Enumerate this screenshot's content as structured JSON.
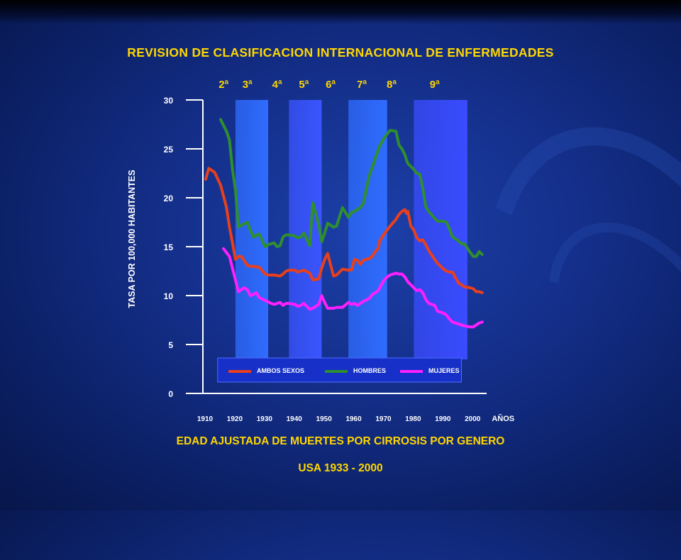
{
  "title": "REVISION DE CLASIFICACION INTERNACIONAL DE ENFERMEDADES",
  "subtitle_line1": "EDAD AJUSTADA DE MUERTES POR CIRROSIS POR GENERO",
  "subtitle_line2": "USA 1933 - 2000",
  "chart_data": {
    "type": "line",
    "xlabel": "AÑOS",
    "ylabel": "TASA POR 100,000 HABITANTES",
    "xlim": [
      1910,
      2004
    ],
    "ylim": [
      0,
      30
    ],
    "x_ticks": [
      1910,
      1920,
      1930,
      1940,
      1950,
      1960,
      1970,
      1980,
      1990,
      2000
    ],
    "y_ticks": [
      0,
      5,
      10,
      15,
      20,
      25,
      30
    ],
    "revisions": [
      {
        "label": "2ª",
        "x": 1916
      },
      {
        "label": "3ª",
        "x": 1924
      },
      {
        "label": "4ª",
        "x": 1934
      },
      {
        "label": "5ª",
        "x": 1943
      },
      {
        "label": "6ª",
        "x": 1952
      },
      {
        "label": "7ª",
        "x": 1962.5
      },
      {
        "label": "8ª",
        "x": 1972.5
      },
      {
        "label": "9ª",
        "x": 1987
      }
    ],
    "revision_bands": [
      {
        "from": 1920,
        "to": 1931,
        "color": "#2f6cff"
      },
      {
        "from": 1938,
        "to": 1949,
        "color": "#3a55ff"
      },
      {
        "from": 1958,
        "to": 1971,
        "color": "#2f6cff"
      },
      {
        "from": 1980,
        "to": 1998,
        "color": "#3a4cff"
      }
    ],
    "legend": "bottom",
    "series": [
      {
        "name": "AMBOS SEXOS",
        "color": "#e8401c",
        "x": [
          1910,
          1911,
          1913,
          1915,
          1917,
          1918,
          1919,
          1920,
          1921,
          1922,
          1924,
          1925,
          1926,
          1928,
          1930,
          1931,
          1933,
          1935,
          1936,
          1937,
          1938,
          1940,
          1941,
          1942,
          1943,
          1945,
          1946,
          1948,
          1949,
          1950,
          1951,
          1953,
          1954,
          1956,
          1958,
          1959,
          1960,
          1961,
          1962,
          1963,
          1965,
          1966,
          1967,
          1968,
          1968.5,
          1970,
          1972,
          1974,
          1975,
          1976,
          1977,
          1977.5,
          1978,
          1979,
          1980,
          1981,
          1982,
          1983,
          1984,
          1985,
          1987,
          1988,
          1990,
          1991,
          1992,
          1993,
          1995,
          1996,
          1997,
          1999,
          2000,
          2001,
          2002,
          2003
        ],
        "y": [
          21.9,
          23.0,
          22.6,
          21.3,
          19.0,
          17.0,
          15.4,
          13.7,
          14.0,
          14.0,
          13.1,
          13.0,
          13.0,
          12.9,
          12.2,
          12.1,
          12.1,
          12.0,
          12.2,
          12.5,
          12.6,
          12.6,
          12.4,
          12.5,
          12.6,
          12.3,
          11.6,
          11.7,
          12.8,
          13.7,
          14.3,
          12.0,
          12.1,
          12.7,
          12.6,
          12.6,
          13.7,
          13.6,
          13.2,
          13.6,
          13.8,
          14.0,
          14.5,
          14.8,
          15.6,
          16.3,
          17.1,
          17.8,
          18.3,
          18.6,
          18.8,
          18.4,
          18.6,
          17.1,
          16.7,
          15.9,
          15.6,
          15.7,
          15.2,
          14.6,
          13.7,
          13.3,
          12.7,
          12.5,
          12.4,
          12.4,
          11.3,
          11.1,
          10.9,
          10.8,
          10.7,
          10.4,
          10.4,
          10.3
        ]
      },
      {
        "name": "HOMBRES",
        "color": "#2f8f2f",
        "x": [
          1915,
          1917,
          1918,
          1919,
          1920,
          1921,
          1922,
          1924,
          1925,
          1926,
          1928,
          1930,
          1931,
          1933,
          1934,
          1935,
          1936,
          1937,
          1938,
          1940,
          1941,
          1942,
          1943,
          1945,
          1946,
          1948,
          1949,
          1950,
          1951,
          1953,
          1954,
          1956,
          1958,
          1959,
          1960,
          1961,
          1962,
          1963,
          1965,
          1966,
          1967,
          1968,
          1968.5,
          1970,
          1972,
          1974,
          1975,
          1976,
          1977,
          1977.5,
          1978,
          1979,
          1980,
          1981,
          1982,
          1983,
          1984,
          1985,
          1987,
          1988,
          1990,
          1991,
          1992,
          1993,
          1995,
          1996,
          1997,
          1999,
          2000,
          2001,
          2002,
          2003
        ],
        "y": [
          28.0,
          26.8,
          25.9,
          22.9,
          20.8,
          17.0,
          17.2,
          17.5,
          16.7,
          16.0,
          16.3,
          15.0,
          15.2,
          15.4,
          15.0,
          15.1,
          16.0,
          16.2,
          16.2,
          16.1,
          15.9,
          16.0,
          16.4,
          15.1,
          19.5,
          17.3,
          15.5,
          16.4,
          17.4,
          17.0,
          17.1,
          19.0,
          18.0,
          18.5,
          18.6,
          18.8,
          19.0,
          19.4,
          22.3,
          23.1,
          24.0,
          24.9,
          25.3,
          26.1,
          26.9,
          26.8,
          25.4,
          25.0,
          24.4,
          23.9,
          23.5,
          23.2,
          22.9,
          22.5,
          22.4,
          21.0,
          19.1,
          18.6,
          17.9,
          17.6,
          17.6,
          17.5,
          16.8,
          16.0,
          15.6,
          15.3,
          15.3,
          14.4,
          14.0,
          14.0,
          14.5,
          14.2
        ]
      },
      {
        "name": "MUJERES",
        "color": "#ff1fff",
        "x": [
          1916,
          1918,
          1919,
          1920,
          1921,
          1922,
          1923,
          1924,
          1925,
          1926,
          1927,
          1928,
          1930,
          1932,
          1933,
          1935,
          1936,
          1937,
          1938,
          1940,
          1941,
          1942,
          1943,
          1945,
          1946,
          1948,
          1949,
          1950,
          1951,
          1953,
          1954,
          1956,
          1958,
          1959,
          1960,
          1961,
          1962,
          1963,
          1965,
          1966,
          1967,
          1968,
          1970,
          1971,
          1972,
          1974,
          1975,
          1976,
          1977,
          1978,
          1979,
          1980,
          1981,
          1982,
          1983,
          1984,
          1985,
          1987,
          1988,
          1990,
          1991,
          1992,
          1993,
          1995,
          1996,
          1997,
          1999,
          2000,
          2001,
          2002,
          2003
        ],
        "y": [
          14.8,
          14.0,
          12.8,
          11.6,
          10.4,
          10.6,
          10.8,
          10.6,
          10.0,
          10.1,
          10.3,
          9.8,
          9.5,
          9.2,
          9.1,
          9.3,
          9.0,
          9.2,
          9.2,
          9.1,
          8.9,
          9.0,
          9.2,
          8.6,
          8.7,
          9.1,
          10.0,
          9.3,
          8.7,
          8.7,
          8.8,
          8.8,
          9.3,
          9.1,
          9.2,
          9.0,
          9.2,
          9.4,
          9.7,
          10.1,
          10.3,
          10.5,
          11.6,
          11.9,
          12.1,
          12.3,
          12.2,
          12.2,
          11.9,
          11.4,
          11.1,
          10.8,
          10.5,
          10.6,
          10.3,
          9.6,
          9.2,
          9.0,
          8.4,
          8.2,
          8.0,
          7.6,
          7.3,
          7.1,
          7.0,
          6.9,
          6.8,
          6.8,
          7.0,
          7.2,
          7.3
        ]
      }
    ]
  }
}
